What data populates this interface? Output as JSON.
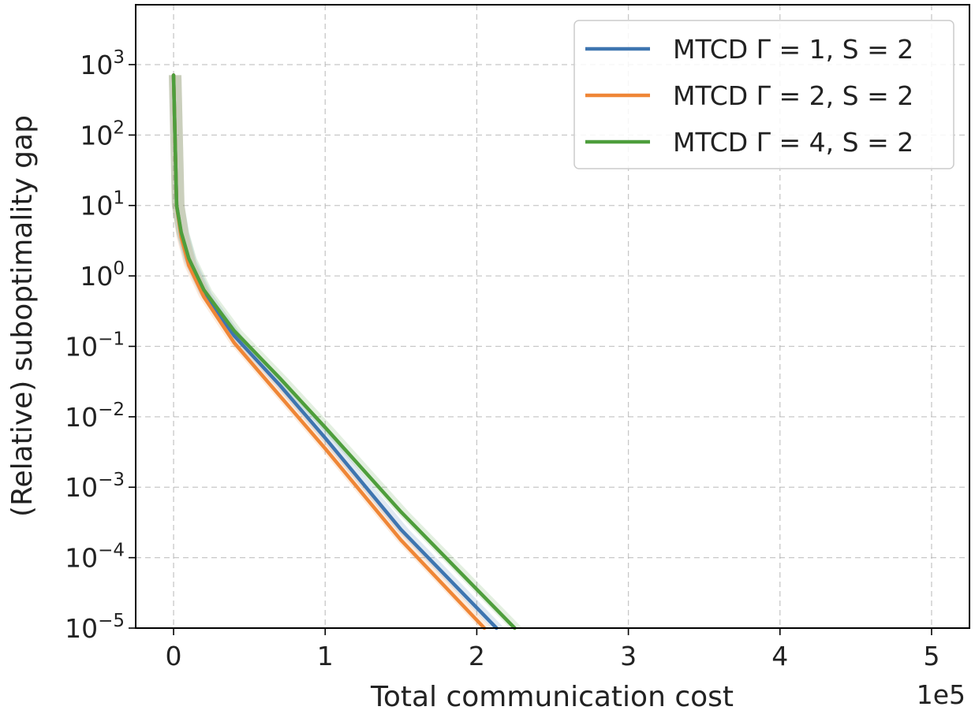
{
  "chart_data": {
    "type": "line",
    "title": "",
    "xlabel": "Total communication cost",
    "ylabel": "(Relative) suboptimality gap",
    "x_offset_label": "1e5",
    "x_scale_factor": 100000,
    "xlim": [
      -0.25,
      5.25
    ],
    "ylim_exponent": [
      -5,
      3.85
    ],
    "yscale": "log",
    "grid": true,
    "legend_position": "top-right",
    "x_ticks": [
      0,
      1,
      2,
      3,
      4,
      5
    ],
    "x_tick_labels": [
      "0",
      "1",
      "2",
      "3",
      "4",
      "5"
    ],
    "y_tick_exponents": [
      3,
      2,
      1,
      0,
      -1,
      -2,
      -3,
      -4,
      -5
    ],
    "y_tick_labels": [
      {
        "base": "10",
        "exp": "3"
      },
      {
        "base": "10",
        "exp": "2"
      },
      {
        "base": "10",
        "exp": "1"
      },
      {
        "base": "10",
        "exp": "0"
      },
      {
        "base": "10",
        "exp": "−1"
      },
      {
        "base": "10",
        "exp": "−2"
      },
      {
        "base": "10",
        "exp": "−3"
      },
      {
        "base": "10",
        "exp": "−4"
      },
      {
        "base": "10",
        "exp": "−5"
      }
    ],
    "series": [
      {
        "name": "MTCD Γ = 1, S = 2",
        "color": "#3e75b0",
        "x": [
          0,
          0.02,
          0.05,
          0.1,
          0.2,
          0.4,
          0.7,
          1.0,
          1.5,
          2.13
        ],
        "y_log10": [
          2.85,
          1.0,
          0.6,
          0.2,
          -0.25,
          -0.85,
          -1.55,
          -2.3,
          -3.6,
          -5.0
        ]
      },
      {
        "name": "MTCD Γ = 2, S = 2",
        "color": "#ef8636",
        "x": [
          0,
          0.02,
          0.05,
          0.1,
          0.2,
          0.4,
          0.7,
          1.0,
          1.5,
          2.05
        ],
        "y_log10": [
          2.85,
          1.0,
          0.55,
          0.15,
          -0.3,
          -0.95,
          -1.7,
          -2.45,
          -3.75,
          -5.0
        ]
      },
      {
        "name": "MTCD Γ = 4, S = 2",
        "color": "#4e9e3c",
        "x": [
          0,
          0.02,
          0.05,
          0.1,
          0.2,
          0.4,
          0.7,
          1.0,
          1.5,
          2.25
        ],
        "y_log10": [
          2.85,
          1.0,
          0.62,
          0.25,
          -0.2,
          -0.78,
          -1.45,
          -2.15,
          -3.35,
          -5.0
        ]
      }
    ]
  }
}
